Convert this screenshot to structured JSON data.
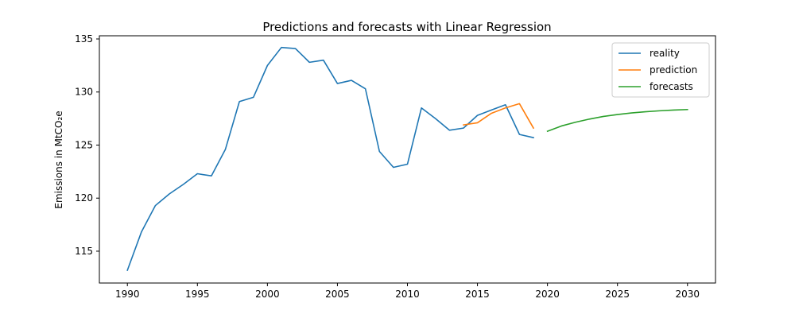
{
  "chart_data": {
    "type": "line",
    "title": "Predictions and forecasts with Linear Regression",
    "xlabel": "",
    "ylabel": "Emissions in MtCO₂e",
    "xlim": [
      1988,
      2032
    ],
    "ylim": [
      112,
      135.3
    ],
    "xticks": [
      1990,
      1995,
      2000,
      2005,
      2010,
      2015,
      2020,
      2025,
      2030
    ],
    "yticks": [
      115,
      120,
      125,
      130,
      135
    ],
    "grid": false,
    "legend_position": "top-right",
    "series": [
      {
        "name": "reality",
        "color": "#1f77b4",
        "x": [
          1990,
          1991,
          1992,
          1993,
          1994,
          1995,
          1996,
          1997,
          1998,
          1999,
          2000,
          2001,
          2002,
          2003,
          2004,
          2005,
          2006,
          2007,
          2008,
          2009,
          2010,
          2011,
          2012,
          2013,
          2014,
          2015,
          2016,
          2017,
          2018,
          2019
        ],
        "values": [
          113.2,
          116.8,
          119.3,
          120.4,
          121.3,
          122.3,
          122.1,
          124.6,
          129.1,
          129.5,
          132.5,
          134.2,
          134.1,
          132.8,
          133.0,
          130.8,
          131.1,
          130.3,
          124.4,
          122.9,
          123.2,
          128.5,
          127.5,
          126.4,
          126.6,
          127.8,
          128.3,
          128.8,
          126.0,
          125.7
        ]
      },
      {
        "name": "prediction",
        "color": "#ff7f0e",
        "x": [
          2014,
          2015,
          2016,
          2017,
          2018,
          2019
        ],
        "values": [
          126.9,
          127.1,
          128.0,
          128.5,
          128.9,
          126.6
        ]
      },
      {
        "name": "forecasts",
        "color": "#2ca02c",
        "x": [
          2020,
          2021,
          2022,
          2023,
          2024,
          2025,
          2026,
          2027,
          2028,
          2029,
          2030
        ],
        "values": [
          126.3,
          126.8,
          127.15,
          127.45,
          127.7,
          127.88,
          128.03,
          128.14,
          128.23,
          128.3,
          128.35
        ]
      }
    ]
  }
}
